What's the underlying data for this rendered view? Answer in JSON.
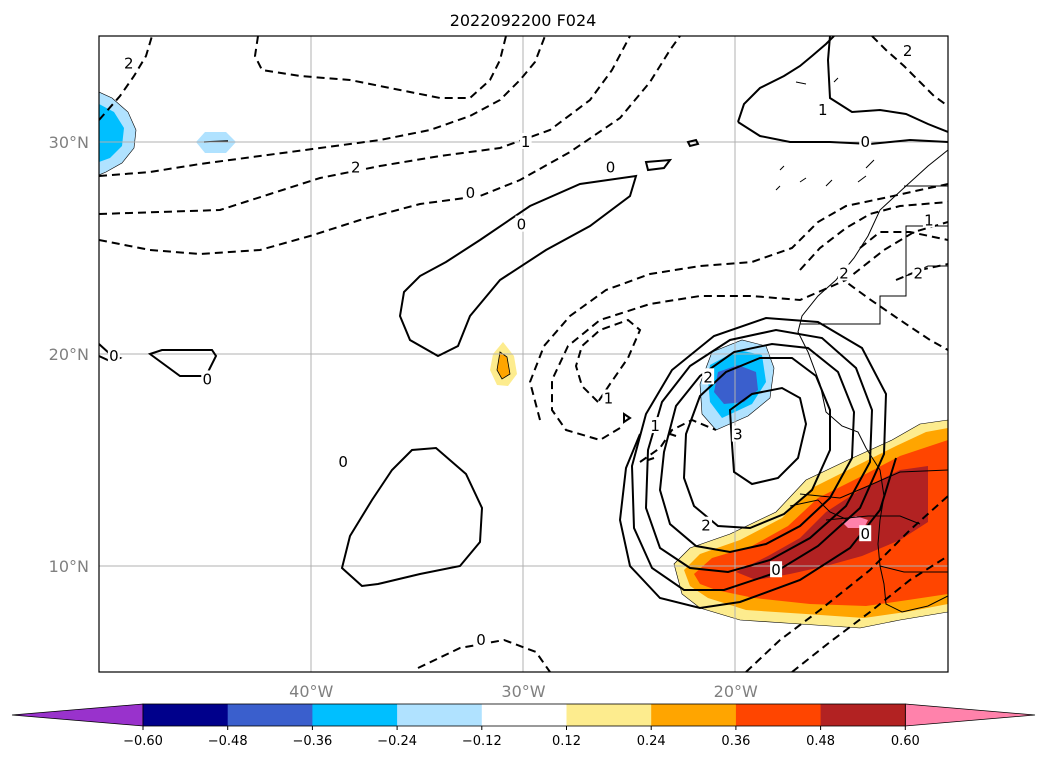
{
  "title": "2022092200 F024",
  "map": {
    "projection": "PlateCarree",
    "lon_range": [
      -50,
      -10
    ],
    "lat_range": [
      5,
      35
    ],
    "gridlines": true,
    "lon_ticks": [
      {
        "value": -40,
        "label": "40°W"
      },
      {
        "value": -30,
        "label": "30°W"
      },
      {
        "value": -20,
        "label": "20°W"
      }
    ],
    "lat_ticks": [
      {
        "value": 10,
        "label": "10°N"
      },
      {
        "value": 20,
        "label": "20°N"
      },
      {
        "value": 30,
        "label": "30°N"
      }
    ]
  },
  "contour_labels": [
    {
      "text": "2",
      "lon": -48.6,
      "lat": 33.7
    },
    {
      "text": "2",
      "lon": -37.9,
      "lat": 28.8
    },
    {
      "text": "1",
      "lon": -29.9,
      "lat": 30.0
    },
    {
      "text": "0",
      "lon": -32.5,
      "lat": 27.6
    },
    {
      "text": "0",
      "lon": -30.1,
      "lat": 26.1
    },
    {
      "text": "0",
      "lon": -25.9,
      "lat": 28.8
    },
    {
      "text": "1",
      "lon": -15.9,
      "lat": 31.5
    },
    {
      "text": "0",
      "lon": -13.9,
      "lat": 30.0
    },
    {
      "text": "2",
      "lon": -11.9,
      "lat": 34.3
    },
    {
      "text": "1",
      "lon": -10.9,
      "lat": 26.3
    },
    {
      "text": "2",
      "lon": -14.9,
      "lat": 23.8
    },
    {
      "text": "2",
      "lon": -11.4,
      "lat": 23.8
    },
    {
      "text": "0",
      "lon": -49.3,
      "lat": 19.9
    },
    {
      "text": "0",
      "lon": -44.9,
      "lat": 18.8
    },
    {
      "text": "1",
      "lon": -26.0,
      "lat": 17.9
    },
    {
      "text": "2",
      "lon": -21.3,
      "lat": 18.9
    },
    {
      "text": "1",
      "lon": -23.8,
      "lat": 16.6
    },
    {
      "text": "3",
      "lon": -19.9,
      "lat": 16.2
    },
    {
      "text": "2",
      "lon": -21.4,
      "lat": 11.9
    },
    {
      "text": "0",
      "lon": -18.1,
      "lat": 9.8
    },
    {
      "text": "0",
      "lon": -13.9,
      "lat": 11.5
    },
    {
      "text": "0",
      "lon": -38.5,
      "lat": 14.9
    },
    {
      "text": "0",
      "lon": -32.0,
      "lat": 6.5
    }
  ],
  "colorbar": {
    "extend": "both",
    "levels": [
      -0.6,
      -0.48,
      -0.36,
      -0.24,
      -0.12,
      0.12,
      0.24,
      0.36,
      0.48,
      0.6
    ],
    "tick_labels": [
      "−0.60",
      "−0.48",
      "−0.36",
      "−0.24",
      "−0.12",
      "0.12",
      "0.24",
      "0.36",
      "0.48",
      "0.60"
    ],
    "colors": [
      "#9932cc",
      "#00008b",
      "#3a5fcd",
      "#00bfff",
      "#b0e2ff",
      "#ffffff",
      "#fdec8e",
      "#ffa500",
      "#ff4500",
      "#b22222",
      "#ff82ab"
    ]
  }
}
